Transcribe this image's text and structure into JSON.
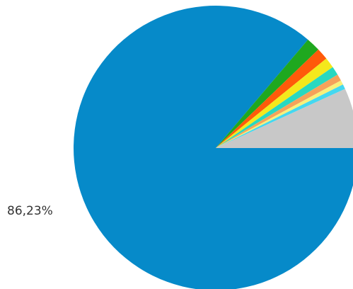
{
  "chart_data": {
    "type": "pie",
    "start_direction": "east",
    "rotation": "counter-clockwise",
    "slices": [
      {
        "value": 86.23,
        "color": "#068ac9",
        "label": "86,23%"
      },
      {
        "value": 1.6,
        "color": "#1fa81f"
      },
      {
        "value": 1.35,
        "color": "#ff5a0a"
      },
      {
        "value": 1.2,
        "color": "#f4e81c"
      },
      {
        "value": 1.0,
        "color": "#28d8c0"
      },
      {
        "value": 0.75,
        "color": "#f5a25a"
      },
      {
        "value": 0.5,
        "color": "#f8f07a"
      },
      {
        "value": 0.55,
        "color": "#44d8f0"
      },
      {
        "value": 6.82,
        "color": "#c8c8c8"
      }
    ]
  }
}
